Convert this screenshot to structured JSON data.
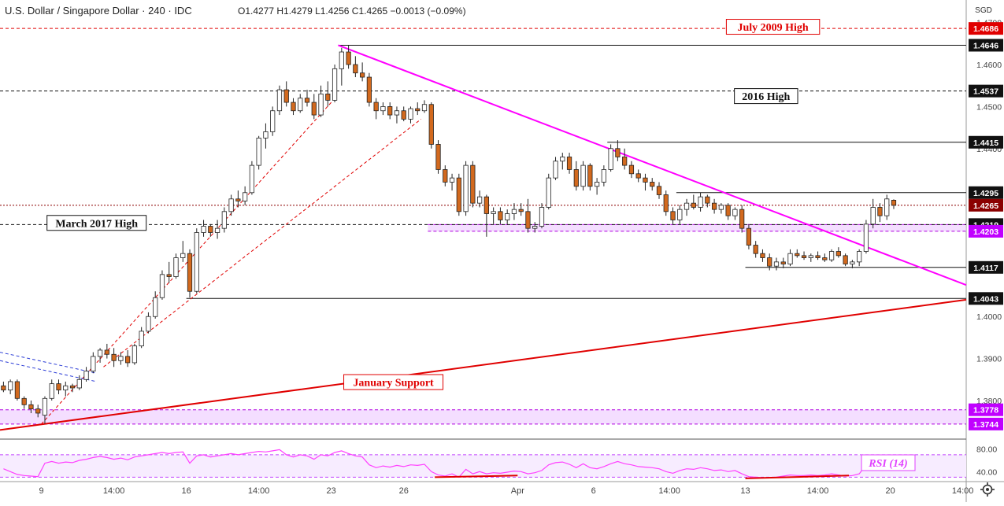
{
  "header": {
    "symbol": "U.S. Dollar / Singapore Dollar · 240 · IDC",
    "ohlc": "O1.4277  H1.4279  L1.4256  C1.4265  −0.0013 (−0.09%)",
    "currency": "SGD"
  },
  "colors": {
    "up": "#ffffff",
    "down": "#d2691e",
    "wick": "#222222",
    "trend_pink": "#ff00ff",
    "support_red": "#e00000",
    "zone": "#ecc8ff",
    "rsi_line": "#ff40ff",
    "price_tag": "#8b0000"
  },
  "chart_data": {
    "type": "candlestick",
    "ylim": [
      1.371,
      1.4705
    ],
    "xlim": [
      0,
      140
    ],
    "x_ticks": [
      {
        "x": 6,
        "label": "9"
      },
      {
        "x": 16.5,
        "label": "14:00"
      },
      {
        "x": 27,
        "label": "16"
      },
      {
        "x": 37.5,
        "label": "14:00"
      },
      {
        "x": 48,
        "label": "23"
      },
      {
        "x": 58.5,
        "label": "26"
      },
      {
        "x": 75,
        "label": "Apr"
      },
      {
        "x": 86,
        "label": "6"
      },
      {
        "x": 97,
        "label": "14:00"
      },
      {
        "x": 108,
        "label": "13"
      },
      {
        "x": 118.5,
        "label": "14:00"
      },
      {
        "x": 129,
        "label": "20"
      },
      {
        "x": 139.5,
        "label": "14:00"
      }
    ],
    "y_ticks": [
      {
        "v": 1.47,
        "label": "1.4700"
      },
      {
        "v": 1.46,
        "label": "1.4600"
      },
      {
        "v": 1.45,
        "label": "1.4500"
      },
      {
        "v": 1.44,
        "label": "1.4400"
      },
      {
        "v": 1.4,
        "label": "1.4000"
      },
      {
        "v": 1.39,
        "label": "1.3900"
      },
      {
        "v": 1.38,
        "label": "1.3800"
      }
    ],
    "price_levels": [
      {
        "v": 1.4686,
        "label": "1.4686",
        "style": "red"
      },
      {
        "v": 1.4646,
        "label": "1.4646",
        "style": "black"
      },
      {
        "v": 1.4537,
        "label": "1.4537",
        "style": "black"
      },
      {
        "v": 1.4415,
        "label": "1.4415",
        "style": "black"
      },
      {
        "v": 1.4295,
        "label": "1.4295",
        "style": "black"
      },
      {
        "v": 1.4265,
        "label": "1.4265",
        "style": "current"
      },
      {
        "v": 1.4219,
        "label": "1.4219",
        "style": "black"
      },
      {
        "v": 1.4203,
        "label": "1.4203",
        "style": "purple"
      },
      {
        "v": 1.4117,
        "label": "1.4117",
        "style": "black"
      },
      {
        "v": 1.4043,
        "label": "1.4043",
        "style": "black"
      },
      {
        "v": 1.3778,
        "label": "1.3778",
        "style": "purple"
      },
      {
        "v": 1.3744,
        "label": "1.3744",
        "style": "purple"
      }
    ],
    "annotations": [
      {
        "text": "July 2009 High",
        "x": 112,
        "v": 1.4689,
        "color": "red"
      },
      {
        "text": "2016 High",
        "x": 111,
        "v": 1.4524,
        "color": "black"
      },
      {
        "text": "March 2017 High",
        "x": 14,
        "v": 1.4222,
        "color": "black"
      },
      {
        "text": "January Support",
        "x": 57,
        "v": 1.3843,
        "color": "red"
      }
    ],
    "candles": [
      [
        0,
        1.3835,
        1.3845,
        1.382,
        1.3825
      ],
      [
        1,
        1.3825,
        1.385,
        1.3815,
        1.3845
      ],
      [
        2,
        1.3845,
        1.385,
        1.38,
        1.3805
      ],
      [
        3,
        1.3805,
        1.381,
        1.378,
        1.379
      ],
      [
        4,
        1.379,
        1.38,
        1.377,
        1.378
      ],
      [
        5,
        1.378,
        1.379,
        1.376,
        1.377
      ],
      [
        6,
        1.3765,
        1.381,
        1.3745,
        1.3805
      ],
      [
        7,
        1.3805,
        1.385,
        1.38,
        1.384
      ],
      [
        8,
        1.384,
        1.385,
        1.3815,
        1.3825
      ],
      [
        9,
        1.3825,
        1.3845,
        1.381,
        1.3835
      ],
      [
        10,
        1.3835,
        1.384,
        1.382,
        1.383
      ],
      [
        11,
        1.383,
        1.386,
        1.3825,
        1.385
      ],
      [
        12,
        1.385,
        1.388,
        1.3845,
        1.387
      ],
      [
        13,
        1.387,
        1.3915,
        1.3865,
        1.3905
      ],
      [
        14,
        1.3905,
        1.3925,
        1.389,
        1.392
      ],
      [
        15,
        1.392,
        1.3935,
        1.39,
        1.391
      ],
      [
        16,
        1.391,
        1.3925,
        1.388,
        1.3895
      ],
      [
        17,
        1.3895,
        1.3915,
        1.3885,
        1.3905
      ],
      [
        18,
        1.3905,
        1.392,
        1.388,
        1.389
      ],
      [
        19,
        1.389,
        1.3935,
        1.3885,
        1.393
      ],
      [
        20,
        1.393,
        1.3975,
        1.3925,
        1.3965
      ],
      [
        21,
        1.3965,
        1.401,
        1.396,
        1.4
      ],
      [
        22,
        1.4,
        1.406,
        1.3995,
        1.4045
      ],
      [
        23,
        1.4045,
        1.411,
        1.404,
        1.41
      ],
      [
        24,
        1.41,
        1.413,
        1.408,
        1.4095
      ],
      [
        25,
        1.4095,
        1.415,
        1.409,
        1.414
      ],
      [
        26,
        1.414,
        1.418,
        1.413,
        1.415
      ],
      [
        27,
        1.415,
        1.416,
        1.4045,
        1.406
      ],
      [
        28,
        1.406,
        1.421,
        1.4055,
        1.42
      ],
      [
        29,
        1.42,
        1.423,
        1.419,
        1.4215
      ],
      [
        30,
        1.4215,
        1.422,
        1.419,
        1.42
      ],
      [
        31,
        1.42,
        1.423,
        1.4185,
        1.421
      ],
      [
        32,
        1.421,
        1.426,
        1.42,
        1.425
      ],
      [
        33,
        1.425,
        1.429,
        1.424,
        1.428
      ],
      [
        34,
        1.428,
        1.43,
        1.426,
        1.4275
      ],
      [
        35,
        1.4275,
        1.431,
        1.4265,
        1.4295
      ],
      [
        36,
        1.4295,
        1.437,
        1.429,
        1.436
      ],
      [
        37,
        1.436,
        1.443,
        1.435,
        1.4425
      ],
      [
        38,
        1.4425,
        1.446,
        1.44,
        1.444
      ],
      [
        39,
        1.444,
        1.45,
        1.443,
        1.449
      ],
      [
        40,
        1.449,
        1.455,
        1.448,
        1.454
      ],
      [
        41,
        1.454,
        1.456,
        1.45,
        1.451
      ],
      [
        42,
        1.451,
        1.452,
        1.448,
        1.449
      ],
      [
        43,
        1.449,
        1.453,
        1.4485,
        1.452
      ],
      [
        44,
        1.452,
        1.454,
        1.45,
        1.451
      ],
      [
        45,
        1.451,
        1.453,
        1.447,
        1.448
      ],
      [
        46,
        1.448,
        1.455,
        1.4475,
        1.453
      ],
      [
        47,
        1.453,
        1.456,
        1.45,
        1.4515
      ],
      [
        48,
        1.4515,
        1.46,
        1.451,
        1.459
      ],
      [
        49,
        1.459,
        1.464,
        1.455,
        1.463
      ],
      [
        50,
        1.463,
        1.4645,
        1.459,
        1.46
      ],
      [
        51,
        1.46,
        1.462,
        1.457,
        1.458
      ],
      [
        52,
        1.458,
        1.4605,
        1.456,
        1.457
      ],
      [
        53,
        1.457,
        1.458,
        1.45,
        1.451
      ],
      [
        54,
        1.451,
        1.452,
        1.447,
        1.449
      ],
      [
        55,
        1.449,
        1.451,
        1.448,
        1.45
      ],
      [
        56,
        1.45,
        1.451,
        1.447,
        1.448
      ],
      [
        57,
        1.448,
        1.45,
        1.446,
        1.449
      ],
      [
        58,
        1.449,
        1.45,
        1.4465,
        1.447
      ],
      [
        59,
        1.447,
        1.45,
        1.446,
        1.4495
      ],
      [
        60,
        1.4495,
        1.451,
        1.448,
        1.449
      ],
      [
        61,
        1.449,
        1.4515,
        1.4485,
        1.4505
      ],
      [
        62,
        1.4505,
        1.451,
        1.44,
        1.441
      ],
      [
        63,
        1.441,
        1.442,
        1.434,
        1.435
      ],
      [
        64,
        1.435,
        1.436,
        1.431,
        1.432
      ],
      [
        65,
        1.432,
        1.434,
        1.43,
        1.433
      ],
      [
        66,
        1.433,
        1.434,
        1.424,
        1.425
      ],
      [
        67,
        1.425,
        1.437,
        1.424,
        1.436
      ],
      [
        68,
        1.436,
        1.437,
        1.426,
        1.427
      ],
      [
        69,
        1.427,
        1.43,
        1.426,
        1.4285
      ],
      [
        70,
        1.4285,
        1.429,
        1.419,
        1.4245
      ],
      [
        71,
        1.4245,
        1.426,
        1.422,
        1.425
      ],
      [
        72,
        1.425,
        1.426,
        1.422,
        1.423
      ],
      [
        73,
        1.423,
        1.4255,
        1.422,
        1.4245
      ],
      [
        74,
        1.4245,
        1.427,
        1.423,
        1.4255
      ],
      [
        75,
        1.4255,
        1.427,
        1.424,
        1.425
      ],
      [
        76,
        1.425,
        1.428,
        1.42,
        1.421
      ],
      [
        77,
        1.421,
        1.4225,
        1.42,
        1.4215
      ],
      [
        78,
        1.4215,
        1.427,
        1.421,
        1.426
      ],
      [
        79,
        1.426,
        1.434,
        1.4255,
        1.433
      ],
      [
        80,
        1.433,
        1.438,
        1.4325,
        1.437
      ],
      [
        81,
        1.437,
        1.439,
        1.435,
        1.438
      ],
      [
        82,
        1.438,
        1.439,
        1.434,
        1.435
      ],
      [
        83,
        1.435,
        1.437,
        1.43,
        1.431
      ],
      [
        84,
        1.431,
        1.437,
        1.43,
        1.436
      ],
      [
        85,
        1.436,
        1.4365,
        1.43,
        1.431
      ],
      [
        86,
        1.431,
        1.433,
        1.429,
        1.432
      ],
      [
        87,
        1.432,
        1.436,
        1.431,
        1.435
      ],
      [
        88,
        1.435,
        1.441,
        1.4345,
        1.44
      ],
      [
        89,
        1.44,
        1.442,
        1.437,
        1.438
      ],
      [
        90,
        1.438,
        1.44,
        1.435,
        1.436
      ],
      [
        91,
        1.436,
        1.437,
        1.433,
        1.434
      ],
      [
        92,
        1.434,
        1.435,
        1.432,
        1.433
      ],
      [
        93,
        1.433,
        1.434,
        1.43,
        1.432
      ],
      [
        94,
        1.432,
        1.433,
        1.43,
        1.431
      ],
      [
        95,
        1.431,
        1.432,
        1.428,
        1.429
      ],
      [
        96,
        1.429,
        1.43,
        1.424,
        1.425
      ],
      [
        97,
        1.425,
        1.426,
        1.422,
        1.423
      ],
      [
        98,
        1.423,
        1.4265,
        1.422,
        1.4255
      ],
      [
        99,
        1.4255,
        1.428,
        1.424,
        1.427
      ],
      [
        100,
        1.427,
        1.429,
        1.4255,
        1.426
      ],
      [
        101,
        1.426,
        1.4295,
        1.425,
        1.4285
      ],
      [
        102,
        1.4285,
        1.429,
        1.426,
        1.427
      ],
      [
        103,
        1.427,
        1.428,
        1.4245,
        1.4255
      ],
      [
        104,
        1.4255,
        1.427,
        1.4245,
        1.4265
      ],
      [
        105,
        1.4265,
        1.427,
        1.423,
        1.424
      ],
      [
        106,
        1.424,
        1.426,
        1.423,
        1.4255
      ],
      [
        107,
        1.4255,
        1.4265,
        1.42,
        1.421
      ],
      [
        108,
        1.421,
        1.422,
        1.416,
        1.417
      ],
      [
        109,
        1.417,
        1.418,
        1.414,
        1.415
      ],
      [
        110,
        1.415,
        1.416,
        1.413,
        1.414
      ],
      [
        111,
        1.414,
        1.415,
        1.411,
        1.412
      ],
      [
        112,
        1.412,
        1.414,
        1.411,
        1.413
      ],
      [
        113,
        1.413,
        1.414,
        1.4115,
        1.4125
      ],
      [
        114,
        1.4125,
        1.416,
        1.412,
        1.415
      ],
      [
        115,
        1.415,
        1.416,
        1.414,
        1.4145
      ],
      [
        116,
        1.4145,
        1.4155,
        1.4135,
        1.414
      ],
      [
        117,
        1.414,
        1.415,
        1.413,
        1.4145
      ],
      [
        118,
        1.4145,
        1.4155,
        1.4135,
        1.414
      ],
      [
        119,
        1.414,
        1.415,
        1.413,
        1.4135
      ],
      [
        120,
        1.4135,
        1.416,
        1.413,
        1.4155
      ],
      [
        121,
        1.4155,
        1.4165,
        1.414,
        1.4145
      ],
      [
        122,
        1.4145,
        1.415,
        1.412,
        1.4125
      ],
      [
        123,
        1.4125,
        1.4135,
        1.4115,
        1.413
      ],
      [
        124,
        1.413,
        1.416,
        1.412,
        1.4155
      ],
      [
        125,
        1.4155,
        1.423,
        1.415,
        1.422
      ],
      [
        126,
        1.422,
        1.428,
        1.421,
        1.426
      ],
      [
        127,
        1.426,
        1.427,
        1.4225,
        1.424
      ],
      [
        128,
        1.424,
        1.429,
        1.423,
        1.428
      ],
      [
        129,
        1.4277,
        1.4279,
        1.4256,
        1.4265
      ]
    ],
    "lines": [
      {
        "name": "pink-trendline",
        "x1": 49,
        "v1": 1.4646,
        "x2": 140,
        "v2": 1.4075,
        "color": "pink",
        "width": 2,
        "dash": ""
      },
      {
        "name": "january-support-line",
        "x1": 0,
        "v1": 1.373,
        "x2": 140,
        "v2": 1.404,
        "color": "red",
        "width": 2,
        "dash": ""
      },
      {
        "name": "red-dashed-trend-1",
        "x1": 6,
        "v1": 1.3744,
        "x2": 48,
        "v2": 1.451,
        "color": "red",
        "width": 1,
        "dash": "4,3"
      },
      {
        "name": "red-dashed-trend-2",
        "x1": 15,
        "v1": 1.388,
        "x2": 61,
        "v2": 1.447,
        "color": "red",
        "width": 1,
        "dash": "4,3"
      },
      {
        "name": "blue-dashed-channel-1",
        "x1": 0,
        "v1": 1.3915,
        "x2": 14,
        "v2": 1.3865,
        "color": "blue",
        "width": 1,
        "dash": "4,3"
      },
      {
        "name": "blue-dashed-channel-2",
        "x1": 0,
        "v1": 1.3895,
        "x2": 14,
        "v2": 1.3845,
        "color": "blue",
        "width": 1,
        "dash": "4,3"
      }
    ],
    "hlines": [
      {
        "name": "level-line-1.4686",
        "v": 1.4686,
        "x1": 0,
        "color": "red",
        "dash": "4,3"
      },
      {
        "name": "level-line-1.4646",
        "v": 1.4646,
        "x1": 49,
        "color": "black",
        "dash": ""
      },
      {
        "name": "level-line-1.4537",
        "v": 1.4537,
        "x1": 0,
        "color": "black",
        "dash": "4,3"
      },
      {
        "name": "level-line-1.4415",
        "v": 1.4415,
        "x1": 88,
        "color": "black",
        "dash": ""
      },
      {
        "name": "level-line-1.4295",
        "v": 1.4295,
        "x1": 98,
        "color": "black",
        "dash": ""
      },
      {
        "name": "level-line-1.4265",
        "v": 1.4265,
        "x1": 0,
        "color": "darkred",
        "dash": "2,2"
      },
      {
        "name": "level-line-1.4219",
        "v": 1.4219,
        "x1": 0,
        "color": "black",
        "dash": "4,3"
      },
      {
        "name": "level-line-1.4117",
        "v": 1.4117,
        "x1": 108,
        "color": "black",
        "dash": ""
      },
      {
        "name": "level-line-1.4043",
        "v": 1.4043,
        "x1": 27,
        "color": "black",
        "dash": ""
      }
    ],
    "zones": [
      {
        "name": "zone-1.4203-1.4219",
        "x1": 62,
        "v1": 1.4219,
        "v2": 1.4203
      },
      {
        "name": "zone-1.3744-1.3778",
        "x1": 0,
        "v1": 1.3778,
        "v2": 1.3744
      }
    ],
    "rsi": {
      "label": "RSI (14)",
      "ylim": [
        25,
        95
      ],
      "y_ticks": [
        {
          "v": 80,
          "label": "80.00"
        },
        {
          "v": 40,
          "label": "40.00"
        }
      ],
      "bands": [
        70,
        30
      ],
      "values": [
        45,
        40,
        35,
        33,
        32,
        31,
        55,
        58,
        55,
        57,
        56,
        60,
        62,
        65,
        67,
        65,
        62,
        64,
        61,
        66,
        68,
        70,
        72,
        74,
        72,
        74,
        75,
        55,
        68,
        70,
        66,
        68,
        70,
        72,
        70,
        72,
        74,
        76,
        75,
        77,
        79,
        70,
        66,
        70,
        68,
        62,
        70,
        68,
        74,
        77,
        72,
        68,
        66,
        52,
        47,
        50,
        48,
        51,
        49,
        52,
        51,
        53,
        40,
        34,
        32,
        36,
        30,
        44,
        36,
        40,
        36,
        38,
        37,
        39,
        41,
        40,
        36,
        38,
        42,
        52,
        56,
        57,
        53,
        47,
        54,
        47,
        45,
        49,
        54,
        58,
        54,
        52,
        49,
        48,
        47,
        45,
        40,
        37,
        42,
        45,
        44,
        47,
        45,
        42,
        43,
        40,
        42,
        36,
        31,
        30,
        29,
        29,
        30,
        32,
        34,
        33,
        33,
        34,
        33,
        34,
        36,
        34,
        32,
        33,
        36,
        52,
        64,
        58,
        65,
        62
      ],
      "divergence_lines": [
        {
          "x1": 63,
          "v1": 30,
          "x2": 75,
          "v2": 33
        },
        {
          "x1": 108,
          "v1": 28,
          "x2": 123,
          "v2": 33
        }
      ]
    }
  }
}
